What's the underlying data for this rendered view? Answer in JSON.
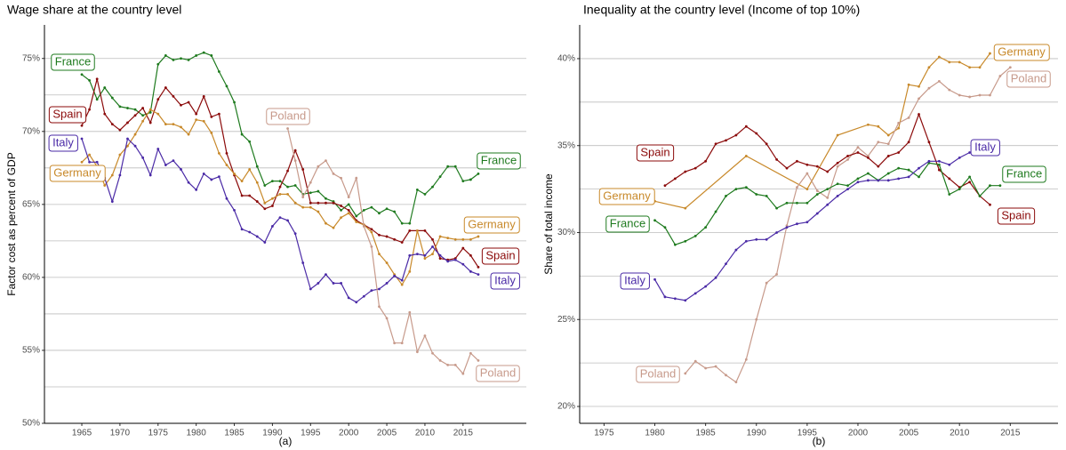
{
  "chart_data": [
    {
      "type": "line",
      "title": "Wage share at the country level",
      "xlabel": "(a)",
      "ylabel": "Factor cost as percent of GDP",
      "xlim": [
        1960.1,
        2023.3
      ],
      "ylim": [
        50,
        77.3
      ],
      "xticks": [
        1965,
        1970,
        1975,
        1980,
        1985,
        1990,
        1995,
        2000,
        2005,
        2010,
        2015
      ],
      "yticks": [
        {
          "value": 50,
          "label": "50%"
        },
        {
          "value": 55,
          "label": "55%"
        },
        {
          "value": 60,
          "label": "60%"
        },
        {
          "value": 65,
          "label": "65%"
        },
        {
          "value": 70,
          "label": "70%"
        },
        {
          "value": 75,
          "label": "75%"
        }
      ],
      "minor_yticks": [
        52.5,
        57.5,
        62.5,
        67.5,
        72.5
      ],
      "grid": true,
      "series": [
        {
          "name": "France",
          "color": "#1e7a1e",
          "x": [
            1965,
            1966,
            1967,
            1968,
            1969,
            1970,
            1971,
            1972,
            1973,
            1974,
            1975,
            1976,
            1977,
            1978,
            1979,
            1980,
            1981,
            1982,
            1983,
            1984,
            1985,
            1986,
            1987,
            1988,
            1989,
            1990,
            1991,
            1992,
            1993,
            1994,
            1995,
            1996,
            1997,
            1998,
            1999,
            2000,
            2001,
            2002,
            2003,
            2004,
            2005,
            2006,
            2007,
            2008,
            2009,
            2010,
            2011,
            2012,
            2013,
            2014,
            2015,
            2016,
            2017
          ],
          "values": [
            73.9,
            73.5,
            72.2,
            73.0,
            72.3,
            71.7,
            71.6,
            71.5,
            71.1,
            71.3,
            74.6,
            75.2,
            74.9,
            75.0,
            74.9,
            75.2,
            75.4,
            75.2,
            74.1,
            73.1,
            72.0,
            69.8,
            69.3,
            67.6,
            66.3,
            66.6,
            66.6,
            66.2,
            66.3,
            65.7,
            65.8,
            65.9,
            65.4,
            65.2,
            64.6,
            65.0,
            64.2,
            64.6,
            64.8,
            64.4,
            64.7,
            64.5,
            63.7,
            63.7,
            66.0,
            65.7,
            66.2,
            66.9,
            67.6,
            67.6,
            66.6,
            66.7,
            67.1
          ]
        },
        {
          "name": "Spain",
          "color": "#8b0a0a",
          "x": [
            1965,
            1966,
            1967,
            1968,
            1969,
            1970,
            1971,
            1972,
            1973,
            1974,
            1975,
            1976,
            1977,
            1978,
            1979,
            1980,
            1981,
            1982,
            1983,
            1984,
            1985,
            1986,
            1987,
            1988,
            1989,
            1990,
            1991,
            1992,
            1993,
            1994,
            1995,
            1996,
            1997,
            1998,
            1999,
            2000,
            2001,
            2002,
            2003,
            2004,
            2005,
            2006,
            2007,
            2008,
            2009,
            2010,
            2011,
            2012,
            2013,
            2014,
            2015,
            2016,
            2017
          ],
          "values": [
            70.4,
            71.5,
            73.6,
            71.2,
            70.5,
            70.1,
            70.6,
            71.1,
            71.6,
            70.6,
            72.2,
            73.0,
            72.4,
            71.8,
            72.0,
            71.2,
            72.4,
            71.0,
            71.2,
            68.5,
            67.0,
            65.6,
            65.6,
            65.2,
            64.7,
            64.9,
            66.2,
            67.3,
            68.7,
            67.4,
            65.1,
            65.1,
            65.1,
            65.1,
            64.9,
            64.6,
            63.9,
            63.6,
            63.3,
            62.9,
            62.8,
            62.6,
            62.4,
            63.2,
            63.2,
            63.2,
            62.6,
            61.3,
            61.2,
            61.3,
            62.0,
            61.5,
            60.7
          ]
        },
        {
          "name": "Germany",
          "color": "#c8892a",
          "x": [
            1965,
            1966,
            1967,
            1968,
            1969,
            1970,
            1971,
            1972,
            1973,
            1974,
            1975,
            1976,
            1977,
            1978,
            1979,
            1980,
            1981,
            1982,
            1983,
            1984,
            1985,
            1986,
            1987,
            1988,
            1989,
            1990,
            1991,
            1992,
            1993,
            1994,
            1995,
            1996,
            1997,
            1998,
            1999,
            2000,
            2001,
            2002,
            2003,
            2004,
            2005,
            2006,
            2007,
            2008,
            2009,
            2010,
            2011,
            2012,
            2013,
            2014,
            2015,
            2016,
            2017
          ],
          "values": [
            67.9,
            68.4,
            67.6,
            66.3,
            67.0,
            68.4,
            69.0,
            69.8,
            70.7,
            71.5,
            71.2,
            70.5,
            70.5,
            70.3,
            69.8,
            70.8,
            70.7,
            69.9,
            68.5,
            67.7,
            67.1,
            66.6,
            67.4,
            66.5,
            65.1,
            65.4,
            65.7,
            65.7,
            65.1,
            64.8,
            64.8,
            64.5,
            63.7,
            63.4,
            64.1,
            64.4,
            63.8,
            63.6,
            63.1,
            61.6,
            61.0,
            60.2,
            59.5,
            60.4,
            63.2,
            61.3,
            61.6,
            62.8,
            62.7,
            62.6,
            62.6,
            62.6,
            62.8
          ]
        },
        {
          "name": "Italy",
          "color": "#4a2aa6",
          "x": [
            1965,
            1966,
            1967,
            1968,
            1969,
            1970,
            1971,
            1972,
            1973,
            1974,
            1975,
            1976,
            1977,
            1978,
            1979,
            1980,
            1981,
            1982,
            1983,
            1984,
            1985,
            1986,
            1987,
            1988,
            1989,
            1990,
            1991,
            1992,
            1993,
            1994,
            1995,
            1996,
            1997,
            1998,
            1999,
            2000,
            2001,
            2002,
            2003,
            2004,
            2005,
            2006,
            2007,
            2008,
            2009,
            2010,
            2011,
            2012,
            2013,
            2014,
            2015,
            2016,
            2017
          ],
          "values": [
            69.5,
            67.9,
            67.9,
            66.8,
            65.2,
            67.0,
            69.5,
            69.0,
            68.2,
            67.0,
            68.8,
            67.7,
            68.0,
            67.4,
            66.5,
            66.0,
            67.1,
            66.7,
            66.9,
            65.4,
            64.6,
            63.3,
            63.1,
            62.8,
            62.4,
            63.5,
            64.1,
            63.9,
            63.0,
            61.0,
            59.2,
            59.6,
            60.2,
            59.6,
            59.6,
            58.6,
            58.3,
            58.7,
            59.1,
            59.2,
            59.6,
            60.1,
            59.8,
            61.5,
            61.6,
            61.5,
            62.1,
            61.5,
            61.1,
            61.2,
            60.9,
            60.4,
            60.2
          ]
        },
        {
          "name": "Poland",
          "color": "#c79a8b",
          "x": [
            1992,
            1993,
            1994,
            1995,
            1996,
            1997,
            1998,
            1999,
            2000,
            2001,
            2002,
            2003,
            2004,
            2005,
            2006,
            2007,
            2008,
            2009,
            2010,
            2011,
            2012,
            2013,
            2014,
            2015,
            2016,
            2017
          ],
          "values": [
            70.2,
            68.0,
            65.5,
            66.5,
            67.6,
            68.0,
            67.1,
            66.8,
            65.5,
            66.8,
            63.5,
            62.1,
            58.0,
            57.2,
            55.5,
            55.5,
            57.6,
            54.9,
            56.0,
            54.8,
            54.3,
            54.0,
            54.0,
            53.4,
            54.8,
            54.3
          ]
        }
      ]
    },
    {
      "type": "line",
      "title": "Inequality at the country level (Income of top 10%)",
      "xlabel": "(b)",
      "ylabel": "Share of total income",
      "xlim": [
        1972.6,
        2019.7
      ],
      "ylim": [
        19.03,
        41.94
      ],
      "xticks": [
        1975,
        1980,
        1985,
        1990,
        1995,
        2000,
        2005,
        2010,
        2015
      ],
      "yticks": [
        {
          "value": 20,
          "label": "20%"
        },
        {
          "value": 25,
          "label": "25%"
        },
        {
          "value": 30,
          "label": "30%"
        },
        {
          "value": 35,
          "label": "35%"
        },
        {
          "value": 40,
          "label": "40%"
        }
      ],
      "minor_yticks": [
        22.5,
        27.5,
        32.5,
        37.5
      ],
      "grid": true,
      "series": [
        {
          "name": "Germany",
          "color": "#c8892a",
          "x": [
            1980,
            1983,
            1989,
            1995,
            1998,
            2001,
            2002,
            2003,
            2004,
            2005,
            2006,
            2007,
            2008,
            2009,
            2010,
            2011,
            2012,
            2013
          ],
          "values": [
            31.8,
            31.4,
            34.4,
            32.5,
            35.6,
            36.2,
            36.1,
            35.6,
            36.0,
            38.5,
            38.4,
            39.5,
            40.1,
            39.8,
            39.8,
            39.5,
            39.5,
            40.3
          ]
        },
        {
          "name": "Poland",
          "color": "#c79a8b",
          "x": [
            1983,
            1984,
            1985,
            1986,
            1987,
            1988,
            1989,
            1990,
            1991,
            1992,
            1993,
            1994,
            1995,
            1996,
            1997,
            1998,
            1999,
            2000,
            2001,
            2002,
            2003,
            2004,
            2005,
            2006,
            2007,
            2008,
            2009,
            2010,
            2011,
            2012,
            2013,
            2014,
            2015
          ],
          "values": [
            21.9,
            22.6,
            22.2,
            22.3,
            21.8,
            21.4,
            22.7,
            25.0,
            27.1,
            27.6,
            30.4,
            32.6,
            33.4,
            32.4,
            32.0,
            33.8,
            34.2,
            34.9,
            34.4,
            35.2,
            35.1,
            36.3,
            36.6,
            37.7,
            38.3,
            38.7,
            38.2,
            37.9,
            37.8,
            37.9,
            37.9,
            39.0,
            39.5
          ]
        },
        {
          "name": "Spain",
          "color": "#8b0a0a",
          "x": [
            1981,
            1982,
            1983,
            1984,
            1985,
            1986,
            1987,
            1988,
            1989,
            1990,
            1991,
            1992,
            1993,
            1994,
            1995,
            1996,
            1997,
            1998,
            1999,
            2000,
            2001,
            2002,
            2003,
            2004,
            2005,
            2006,
            2007,
            2008,
            2009,
            2010,
            2011,
            2012,
            2013
          ],
          "values": [
            32.7,
            33.1,
            33.5,
            33.7,
            34.1,
            35.1,
            35.3,
            35.6,
            36.1,
            35.7,
            35.1,
            34.2,
            33.7,
            34.1,
            33.9,
            33.8,
            33.5,
            34.0,
            34.4,
            34.6,
            34.3,
            33.8,
            34.4,
            34.6,
            35.2,
            36.8,
            35.2,
            33.6,
            33.1,
            32.6,
            32.9,
            32.1,
            31.6
          ]
        },
        {
          "name": "France",
          "color": "#1e7a1e",
          "x": [
            1980,
            1981,
            1982,
            1983,
            1984,
            1985,
            1986,
            1987,
            1988,
            1989,
            1990,
            1991,
            1992,
            1993,
            1994,
            1995,
            1996,
            1997,
            1998,
            1999,
            2000,
            2001,
            2002,
            2003,
            2004,
            2005,
            2006,
            2007,
            2008,
            2009,
            2010,
            2011,
            2012,
            2013,
            2014
          ],
          "values": [
            30.7,
            30.3,
            29.3,
            29.5,
            29.8,
            30.3,
            31.2,
            32.1,
            32.5,
            32.6,
            32.2,
            32.1,
            31.4,
            31.7,
            31.7,
            31.7,
            32.2,
            32.5,
            32.8,
            32.7,
            33.1,
            33.4,
            33.0,
            33.4,
            33.7,
            33.6,
            33.2,
            34.0,
            33.9,
            32.2,
            32.5,
            33.2,
            32.1,
            32.7,
            32.7
          ]
        },
        {
          "name": "Italy",
          "color": "#4a2aa6",
          "x": [
            1980,
            1981,
            1982,
            1983,
            1984,
            1985,
            1986,
            1987,
            1988,
            1989,
            1990,
            1991,
            1992,
            1993,
            1994,
            1995,
            1996,
            1997,
            1998,
            1999,
            2000,
            2001,
            2002,
            2003,
            2004,
            2005,
            2006,
            2007,
            2008,
            2009,
            2010,
            2011
          ],
          "values": [
            27.3,
            26.3,
            26.2,
            26.1,
            26.5,
            26.9,
            27.4,
            28.2,
            29.0,
            29.5,
            29.6,
            29.6,
            30.0,
            30.3,
            30.5,
            30.6,
            31.1,
            31.6,
            32.1,
            32.5,
            32.9,
            33.0,
            33.0,
            33.0,
            33.1,
            33.2,
            33.7,
            34.1,
            34.1,
            33.9,
            34.3,
            34.6
          ]
        }
      ]
    }
  ]
}
